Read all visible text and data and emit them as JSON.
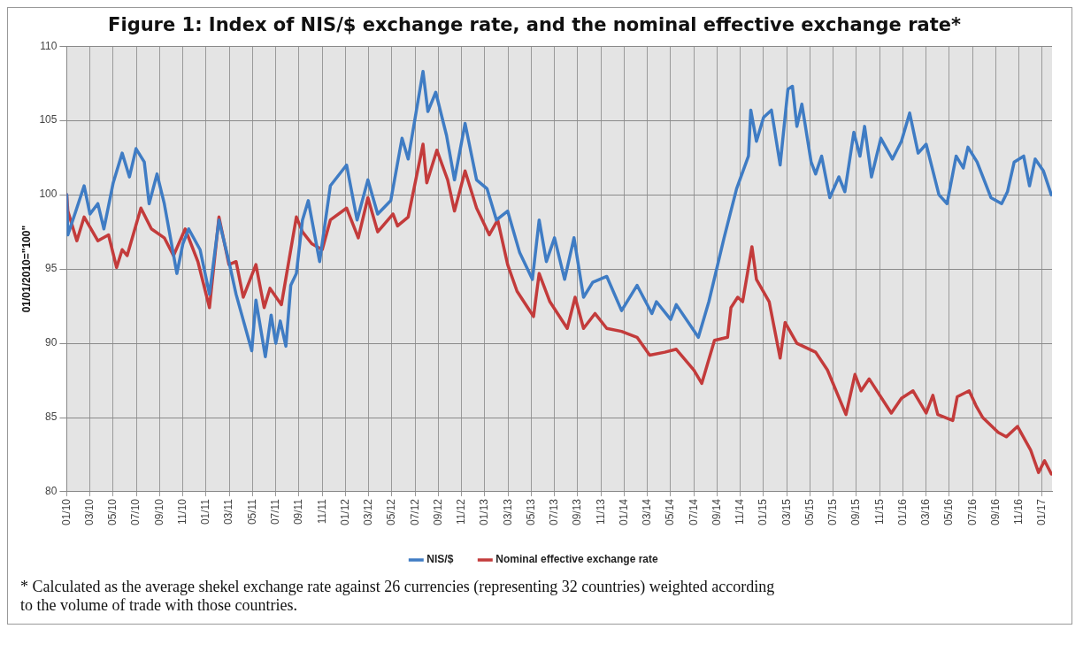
{
  "chart_data": {
    "type": "line",
    "title": "Figure 1: Index of NIS/$ exchange rate, and the nominal effective exchange rate*",
    "ylabel": "01/01/2010=\"100\"",
    "xlim": [
      "2010-01-01",
      "2017-01-27"
    ],
    "xticks": [
      {
        "value": "2010-01",
        "label": "01/10"
      },
      {
        "value": "2010-03",
        "label": "03/10"
      },
      {
        "value": "2010-05",
        "label": "05/10"
      },
      {
        "value": "2010-07",
        "label": "07/10"
      },
      {
        "value": "2010-09",
        "label": "09/10"
      },
      {
        "value": "2010-11",
        "label": "11/10"
      },
      {
        "value": "2011-01",
        "label": "01/11"
      },
      {
        "value": "2011-03",
        "label": "03/11"
      },
      {
        "value": "2011-05",
        "label": "05/11"
      },
      {
        "value": "2011-07",
        "label": "07/11"
      },
      {
        "value": "2011-09",
        "label": "09/11"
      },
      {
        "value": "2011-11",
        "label": "11/11"
      },
      {
        "value": "2012-01",
        "label": "01/12"
      },
      {
        "value": "2012-03",
        "label": "03/12"
      },
      {
        "value": "2012-05",
        "label": "05/12"
      },
      {
        "value": "2012-07",
        "label": "07/12"
      },
      {
        "value": "2012-09",
        "label": "09/12"
      },
      {
        "value": "2012-11",
        "label": "11/12"
      },
      {
        "value": "2013-01",
        "label": "01/13"
      },
      {
        "value": "2013-03",
        "label": "03/13"
      },
      {
        "value": "2013-05",
        "label": "05/13"
      },
      {
        "value": "2013-07",
        "label": "07/13"
      },
      {
        "value": "2013-09",
        "label": "09/13"
      },
      {
        "value": "2013-11",
        "label": "11/13"
      },
      {
        "value": "2014-01",
        "label": "01/14"
      },
      {
        "value": "2014-03",
        "label": "03/14"
      },
      {
        "value": "2014-05",
        "label": "05/14"
      },
      {
        "value": "2014-07",
        "label": "07/14"
      },
      {
        "value": "2014-09",
        "label": "09/14"
      },
      {
        "value": "2014-11",
        "label": "11/14"
      },
      {
        "value": "2015-01",
        "label": "01/15"
      },
      {
        "value": "2015-03",
        "label": "03/15"
      },
      {
        "value": "2015-05",
        "label": "05/15"
      },
      {
        "value": "2015-07",
        "label": "07/15"
      },
      {
        "value": "2015-09",
        "label": "09/15"
      },
      {
        "value": "2015-11",
        "label": "11/15"
      },
      {
        "value": "2016-01",
        "label": "01/16"
      },
      {
        "value": "2016-03",
        "label": "03/16"
      },
      {
        "value": "2016-05",
        "label": "05/16"
      },
      {
        "value": "2016-07",
        "label": "07/16"
      },
      {
        "value": "2016-09",
        "label": "09/16"
      },
      {
        "value": "2016-11",
        "label": "11/16"
      },
      {
        "value": "2017-01",
        "label": "01/17"
      }
    ],
    "ylim": [
      80,
      110
    ],
    "yticks": [
      80,
      85,
      90,
      95,
      100,
      105,
      110
    ],
    "grid": true,
    "legend": "bottom",
    "series": [
      {
        "name": "NIS/$",
        "color": "#3f7cc4",
        "x": [
          "2010-01-01",
          "2010-01-04",
          "2010-01-24",
          "2010-02-15",
          "2010-03-01",
          "2010-03-22",
          "2010-04-07",
          "2010-05-01",
          "2010-05-25",
          "2010-06-13",
          "2010-06-30",
          "2010-07-22",
          "2010-08-04",
          "2010-08-25",
          "2010-09-13",
          "2010-10-16",
          "2010-11-01",
          "2010-11-16",
          "2010-12-16",
          "2011-01-10",
          "2011-02-04",
          "2011-02-28",
          "2011-03-19",
          "2011-04-29",
          "2011-05-10",
          "2011-06-04",
          "2011-06-19",
          "2011-07-01",
          "2011-07-13",
          "2011-07-28",
          "2011-08-10",
          "2011-08-25",
          "2011-09-10",
          "2011-09-25",
          "2011-10-25",
          "2011-11-22",
          "2012-01-04",
          "2012-02-01",
          "2012-02-28",
          "2012-03-25",
          "2012-04-28",
          "2012-05-28",
          "2012-06-13",
          "2012-07-22",
          "2012-08-04",
          "2012-08-25",
          "2012-09-22",
          "2012-10-13",
          "2012-11-10",
          "2012-12-10",
          "2013-01-07",
          "2013-02-01",
          "2013-02-28",
          "2013-04-01",
          "2013-05-04",
          "2013-05-22",
          "2013-06-10",
          "2013-07-01",
          "2013-07-28",
          "2013-08-22",
          "2013-09-16",
          "2013-10-10",
          "2013-11-16",
          "2013-12-25",
          "2014-02-04",
          "2014-03-13",
          "2014-03-25",
          "2014-05-01",
          "2014-05-16",
          "2014-07-13",
          "2014-08-10",
          "2014-09-19",
          "2014-10-22",
          "2014-11-22",
          "2014-11-28",
          "2014-12-13",
          "2015-01-01",
          "2015-01-22",
          "2015-02-13",
          "2015-03-04",
          "2015-03-16",
          "2015-03-28",
          "2015-04-10",
          "2015-05-04",
          "2015-05-16",
          "2015-06-01",
          "2015-06-22",
          "2015-07-16",
          "2015-08-01",
          "2015-08-25",
          "2015-09-10",
          "2015-09-22",
          "2015-10-10",
          "2015-11-04",
          "2015-12-04",
          "2015-12-28",
          "2016-01-19",
          "2016-02-10",
          "2016-03-01",
          "2016-04-04",
          "2016-04-25",
          "2016-05-19",
          "2016-06-07",
          "2016-06-19",
          "2016-07-13",
          "2016-08-19",
          "2016-09-16",
          "2016-10-01",
          "2016-10-19",
          "2016-11-13",
          "2016-11-28",
          "2016-12-13",
          "2017-01-04",
          "2017-01-25"
        ],
        "values": [
          100,
          97.3,
          98.8,
          100.6,
          98.7,
          99.4,
          97.7,
          100.8,
          102.8,
          101.2,
          103.1,
          102.2,
          99.4,
          101.4,
          99.4,
          94.7,
          96.7,
          97.7,
          96.3,
          93.3,
          98.3,
          95.5,
          93.3,
          89.5,
          92.9,
          89.1,
          91.9,
          90.0,
          91.5,
          89.8,
          93.9,
          94.7,
          98.3,
          99.6,
          95.5,
          100.6,
          102.0,
          98.3,
          101.0,
          98.7,
          99.6,
          103.8,
          102.4,
          108.3,
          105.6,
          106.9,
          104.0,
          101.0,
          104.8,
          101.0,
          100.4,
          98.3,
          98.9,
          96.1,
          94.3,
          98.3,
          95.5,
          97.1,
          94.3,
          97.1,
          93.1,
          94.1,
          94.5,
          92.2,
          93.9,
          92.0,
          92.8,
          91.6,
          92.6,
          90.4,
          92.8,
          97.1,
          100.4,
          102.6,
          105.7,
          103.6,
          105.2,
          105.7,
          102.0,
          107.1,
          107.3,
          104.6,
          106.1,
          102.2,
          101.4,
          102.6,
          99.8,
          101.2,
          100.2,
          104.2,
          102.6,
          104.6,
          101.2,
          103.8,
          102.4,
          103.6,
          105.5,
          102.8,
          103.4,
          100.0,
          99.4,
          102.6,
          101.8,
          103.2,
          102.2,
          99.8,
          99.4,
          100.2,
          102.2,
          102.6,
          100.6,
          102.4,
          101.6,
          100.0
        ]
      },
      {
        "name": "Nominal effective exchange rate",
        "color": "#c33b3b",
        "x": [
          "2010-01-01",
          "2010-01-04",
          "2010-01-28",
          "2010-02-15",
          "2010-03-22",
          "2010-04-19",
          "2010-05-10",
          "2010-05-25",
          "2010-06-07",
          "2010-07-13",
          "2010-08-10",
          "2010-09-13",
          "2010-10-07",
          "2010-11-07",
          "2010-12-10",
          "2011-01-10",
          "2011-02-04",
          "2011-02-28",
          "2011-03-19",
          "2011-04-07",
          "2011-05-10",
          "2011-06-01",
          "2011-06-16",
          "2011-07-16",
          "2011-08-10",
          "2011-08-25",
          "2011-09-10",
          "2011-10-04",
          "2011-11-01",
          "2011-11-22",
          "2012-01-04",
          "2012-02-04",
          "2012-02-28",
          "2012-03-25",
          "2012-05-04",
          "2012-05-16",
          "2012-06-13",
          "2012-07-22",
          "2012-08-01",
          "2012-08-28",
          "2012-09-25",
          "2012-10-13",
          "2012-11-10",
          "2012-12-10",
          "2013-01-13",
          "2013-02-04",
          "2013-02-28",
          "2013-03-25",
          "2013-05-07",
          "2013-05-22",
          "2013-06-19",
          "2013-08-04",
          "2013-08-25",
          "2013-09-16",
          "2013-10-16",
          "2013-11-16",
          "2013-12-25",
          "2014-02-04",
          "2014-03-07",
          "2014-04-16",
          "2014-05-16",
          "2014-07-01",
          "2014-07-22",
          "2014-08-25",
          "2014-09-28",
          "2014-10-07",
          "2014-10-25",
          "2014-11-07",
          "2014-12-01",
          "2014-12-13",
          "2015-01-16",
          "2015-02-13",
          "2015-02-25",
          "2015-03-28",
          "2015-05-16",
          "2015-06-16",
          "2015-08-04",
          "2015-08-28",
          "2015-09-13",
          "2015-10-04",
          "2015-12-01",
          "2015-12-28",
          "2016-01-28",
          "2016-03-01",
          "2016-03-19",
          "2016-04-01",
          "2016-05-10",
          "2016-05-22",
          "2016-06-22",
          "2016-07-10",
          "2016-07-28",
          "2016-09-07",
          "2016-09-28",
          "2016-10-28",
          "2016-12-01",
          "2016-12-22",
          "2017-01-07",
          "2017-01-25"
        ],
        "values": [
          100,
          98.9,
          96.9,
          98.5,
          96.9,
          97.3,
          95.1,
          96.3,
          95.9,
          99.1,
          97.7,
          97.1,
          95.9,
          97.7,
          95.5,
          92.4,
          98.5,
          95.3,
          95.5,
          93.1,
          95.3,
          92.4,
          93.7,
          92.6,
          96.3,
          98.5,
          97.5,
          96.7,
          96.3,
          98.3,
          99.1,
          97.1,
          99.8,
          97.5,
          98.7,
          97.9,
          98.5,
          103.4,
          100.8,
          103.0,
          101.0,
          98.9,
          101.6,
          99.1,
          97.3,
          98.3,
          95.3,
          93.5,
          91.8,
          94.7,
          92.8,
          91.0,
          93.1,
          91.0,
          92.0,
          91.0,
          90.8,
          90.4,
          89.2,
          89.4,
          89.6,
          88.2,
          87.3,
          90.2,
          90.4,
          92.4,
          93.1,
          92.8,
          96.5,
          94.3,
          92.8,
          89.0,
          91.4,
          90.0,
          89.4,
          88.2,
          85.2,
          87.9,
          86.8,
          87.6,
          85.3,
          86.3,
          86.8,
          85.3,
          86.5,
          85.2,
          84.8,
          86.4,
          86.8,
          85.8,
          85.0,
          84.0,
          83.7,
          84.4,
          82.8,
          81.3,
          82.1,
          81.2
        ]
      }
    ],
    "annotations": [
      "* Calculated as the average shekel exchange rate against 26 currencies (representing 32 countries) weighted according to the volume of trade with those countries."
    ]
  }
}
